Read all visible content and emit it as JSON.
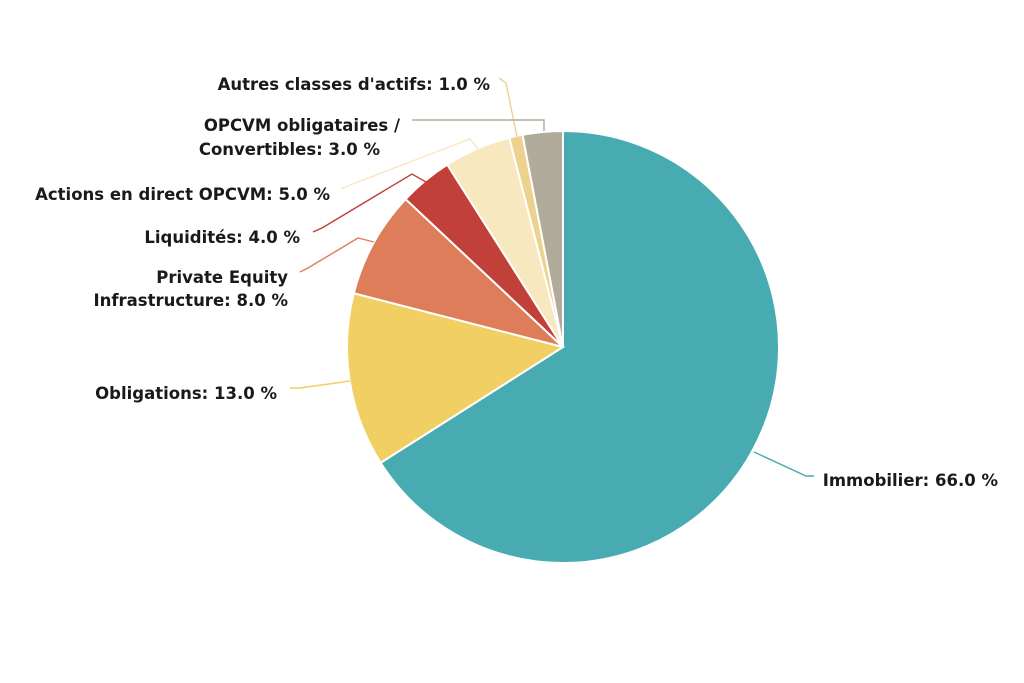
{
  "chart_data": {
    "type": "pie",
    "unit": "%",
    "slices": [
      {
        "label": "Immobilier",
        "value": 66.0,
        "color": "#48abb2",
        "text": [
          "Immobilier: 66.0 %"
        ]
      },
      {
        "label": "Obligations",
        "value": 13.0,
        "color": "#f1cf63",
        "text": [
          "Obligations: 13.0 %"
        ]
      },
      {
        "label": "Private Equity Infrastructure",
        "value": 8.0,
        "color": "#de7d59",
        "text": [
          "Private Equity",
          "Infrastructure: 8.0 %"
        ]
      },
      {
        "label": "Liquidités",
        "value": 4.0,
        "color": "#c1403a",
        "text": [
          "Liquidités: 4.0 %"
        ]
      },
      {
        "label": "Actions en direct OPCVM",
        "value": 5.0,
        "color": "#f8e8bf",
        "text": [
          "Actions en direct OPCVM: 5.0 %"
        ]
      },
      {
        "label": "Autres classes d'actifs",
        "value": 1.0,
        "color": "#edd28f",
        "text": [
          "Autres classes d'actifs: 1.0 %"
        ]
      },
      {
        "label": "OPCVM obligataires / Convertibles",
        "value": 3.0,
        "color": "#b1ab9b",
        "text": [
          "OPCVM obligataires /",
          "Convertibles: 3.0 %"
        ]
      }
    ]
  }
}
